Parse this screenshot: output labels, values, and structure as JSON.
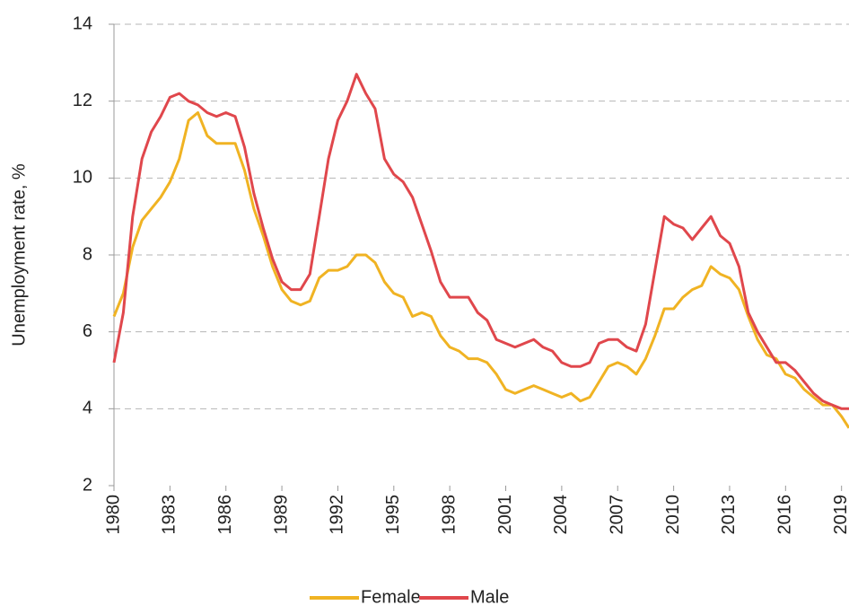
{
  "chart_data": {
    "type": "line",
    "y_label": "Unemployment rate, %",
    "x": [
      1980,
      1980.5,
      1981,
      1981.5,
      1982,
      1982.5,
      1983,
      1983.5,
      1984,
      1984.5,
      1985,
      1985.5,
      1986,
      1986.5,
      1987,
      1987.5,
      1988,
      1988.5,
      1989,
      1989.5,
      1990,
      1990.5,
      1991,
      1991.5,
      1992,
      1992.5,
      1993,
      1993.5,
      1994,
      1994.5,
      1995,
      1995.5,
      1996,
      1996.5,
      1997,
      1997.5,
      1998,
      1998.5,
      1999,
      1999.5,
      2000,
      2000.5,
      2001,
      2001.5,
      2002,
      2002.5,
      2003,
      2003.5,
      2004,
      2004.5,
      2005,
      2005.5,
      2006,
      2006.5,
      2007,
      2007.5,
      2008,
      2008.5,
      2009,
      2009.5,
      2010,
      2010.5,
      2011,
      2011.5,
      2012,
      2012.5,
      2013,
      2013.5,
      2014,
      2014.5,
      2015,
      2015.5,
      2016,
      2016.5,
      2017,
      2017.5,
      2018,
      2018.5,
      2019,
      2019.4
    ],
    "series": [
      {
        "name": "Female",
        "color": "#f0b323",
        "values": [
          6.4,
          7.0,
          8.2,
          8.9,
          9.2,
          9.5,
          9.9,
          10.5,
          11.5,
          11.7,
          11.1,
          10.9,
          10.9,
          10.9,
          10.2,
          9.2,
          8.5,
          7.7,
          7.1,
          6.8,
          6.7,
          6.8,
          7.4,
          7.6,
          7.6,
          7.7,
          8.0,
          8.0,
          7.8,
          7.3,
          7.0,
          6.9,
          6.4,
          6.5,
          6.4,
          5.9,
          5.6,
          5.5,
          5.3,
          5.3,
          5.2,
          4.9,
          4.5,
          4.4,
          4.5,
          4.6,
          4.5,
          4.4,
          4.3,
          4.4,
          4.2,
          4.3,
          4.7,
          5.1,
          5.2,
          5.1,
          4.9,
          5.3,
          5.9,
          6.6,
          6.6,
          6.9,
          7.1,
          7.2,
          7.7,
          7.5,
          7.4,
          7.1,
          6.4,
          5.8,
          5.4,
          5.3,
          4.9,
          4.8,
          4.5,
          4.3,
          4.1,
          4.1,
          3.8,
          3.5
        ]
      },
      {
        "name": "Male",
        "color": "#e0474c",
        "values": [
          5.2,
          6.5,
          9.0,
          10.5,
          11.2,
          11.6,
          12.1,
          12.2,
          12.0,
          11.9,
          11.7,
          11.6,
          11.7,
          11.6,
          10.8,
          9.6,
          8.7,
          7.9,
          7.3,
          7.1,
          7.1,
          7.5,
          9.0,
          10.5,
          11.5,
          12.0,
          12.7,
          12.2,
          11.8,
          10.5,
          10.1,
          9.9,
          9.5,
          8.8,
          8.1,
          7.3,
          6.9,
          6.9,
          6.9,
          6.5,
          6.3,
          5.8,
          5.7,
          5.6,
          5.7,
          5.8,
          5.6,
          5.5,
          5.2,
          5.1,
          5.1,
          5.2,
          5.7,
          5.8,
          5.8,
          5.6,
          5.5,
          6.2,
          7.6,
          9.0,
          8.8,
          8.7,
          8.4,
          8.7,
          9.0,
          8.5,
          8.3,
          7.7,
          6.5,
          6.0,
          5.6,
          5.2,
          5.2,
          5.0,
          4.7,
          4.4,
          4.2,
          4.1,
          4.0,
          4.0
        ]
      }
    ],
    "xlim": [
      1980,
      2019.4
    ],
    "xticks": [
      1980,
      1983,
      1986,
      1989,
      1992,
      1995,
      1998,
      2001,
      2004,
      2007,
      2010,
      2013,
      2016,
      2019
    ],
    "ylim": [
      2,
      14
    ],
    "yticks": [
      2,
      4,
      6,
      8,
      10,
      12,
      14
    ],
    "grid": true,
    "legend": "bottom"
  }
}
